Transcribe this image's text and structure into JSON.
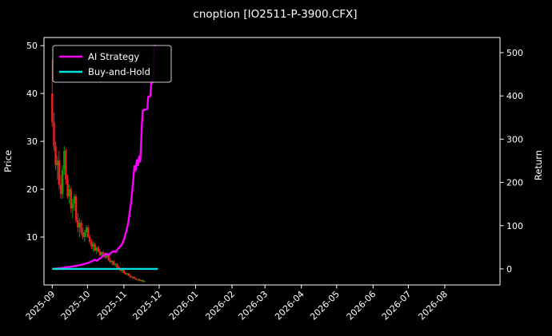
{
  "colors": {
    "background": "#000000",
    "text": "#ffffff",
    "spine": "#ffffff",
    "up_candle": "#00a000",
    "down_candle": "#f21f1f",
    "ai_strategy": "#ff00ff",
    "buy_and_hold": "#00e0e0",
    "legend_edge": "#cccccc"
  },
  "chart_data": {
    "type": "candlestick+line",
    "title": "cnoption [IO2511-P-3900.CFX]",
    "ylabel_left": "Price",
    "ylabel_right": "Return",
    "legend_position": "upper left",
    "grid": false,
    "x_domain_days": [
      2,
      390
    ],
    "price_ylim": [
      0,
      51.7
    ],
    "price_ticks": [
      10,
      20,
      30,
      40,
      50
    ],
    "return_ylim": [
      -37,
      535
    ],
    "return_ticks": [
      0,
      100,
      200,
      300,
      400,
      500
    ],
    "x_ticks": [
      {
        "label": "2025-09",
        "day": 9
      },
      {
        "label": "2025-10",
        "day": 39
      },
      {
        "label": "2025-11",
        "day": 70
      },
      {
        "label": "2025-12",
        "day": 100
      },
      {
        "label": "2026-01",
        "day": 131
      },
      {
        "label": "2026-02",
        "day": 162
      },
      {
        "label": "2026-03",
        "day": 190
      },
      {
        "label": "2026-04",
        "day": 221
      },
      {
        "label": "2026-05",
        "day": 251
      },
      {
        "label": "2026-06",
        "day": 282
      },
      {
        "label": "2026-07",
        "day": 312
      },
      {
        "label": "2026-08",
        "day": 343
      }
    ],
    "candles": {
      "days": [
        9,
        10.5,
        11.9,
        13.4,
        14.8,
        16.3,
        17.7,
        19.2,
        20.6,
        22.1,
        23.5,
        25,
        26.4,
        27.9,
        29.3,
        30.8,
        32.2,
        33.7,
        35.1,
        36.6,
        38,
        39.5,
        40.9,
        42.4,
        43.8,
        45.3,
        46.7,
        48.2,
        49.6,
        51.1,
        52.5,
        54,
        55.4,
        56.9,
        58.3,
        59.8,
        61.2,
        62.7,
        64.1,
        65.6,
        67,
        68.5,
        69.9,
        71.4,
        72.8,
        74.3,
        75.7,
        77.2,
        78.6,
        80.1,
        81.5,
        83,
        84.4,
        85.9,
        87.3
      ],
      "open": [
        40,
        34,
        29,
        25,
        26,
        21,
        19,
        24,
        28,
        22,
        18.5,
        20,
        16,
        17,
        18.5,
        13.5,
        12,
        13,
        11,
        10,
        11,
        12,
        10,
        9,
        8,
        8.5,
        7.2,
        7.8,
        7,
        6.2,
        6.8,
        6.5,
        5.8,
        6.2,
        5.2,
        4.8,
        5,
        4.2,
        4.4,
        3.7,
        3.4,
        3,
        3.1,
        2.5,
        2.2,
        2.4,
        1.9,
        1.6,
        1.7,
        1.3,
        1.1,
        1.2,
        0.9,
        1,
        0.7
      ],
      "high": [
        47,
        36,
        30,
        27,
        28,
        23,
        25,
        29,
        28.5,
        23,
        21,
        20.5,
        18,
        19,
        19,
        15,
        14,
        13.5,
        12,
        11.5,
        12.5,
        12.5,
        10.5,
        9.5,
        9,
        8.8,
        8,
        8.2,
        7.5,
        7,
        7.2,
        6.8,
        6.5,
        6.4,
        5.6,
        5.2,
        5.1,
        4.6,
        4.5,
        4,
        3.6,
        3.3,
        3.2,
        2.8,
        2.5,
        2.5,
        2.1,
        1.8,
        1.8,
        1.5,
        1.3,
        1.3,
        1.1,
        1.1,
        0.9
      ],
      "low": [
        33,
        28,
        24,
        22,
        20,
        18,
        18,
        23,
        21,
        18,
        17,
        15,
        14,
        15.5,
        13,
        11,
        10,
        10.5,
        9.5,
        9,
        10,
        9.8,
        8.5,
        7.5,
        7,
        7,
        6.5,
        6.8,
        6,
        5.8,
        6.2,
        5.5,
        5.5,
        5,
        4.5,
        4.2,
        4,
        3.8,
        3.5,
        3.2,
        2.8,
        2.6,
        2.4,
        2.1,
        1.9,
        1.8,
        1.5,
        1.3,
        1.2,
        1,
        0.9,
        0.8,
        0.7,
        0.6,
        0.5
      ],
      "close": [
        34,
        29,
        25,
        26,
        21,
        19,
        24,
        28,
        22,
        18.5,
        20,
        16,
        17,
        18.5,
        13.5,
        12,
        13,
        11,
        10,
        11,
        12,
        10,
        9,
        8,
        8.5,
        7.2,
        7.8,
        7,
        6.2,
        6.8,
        6.5,
        5.8,
        6.2,
        5.2,
        4.8,
        5,
        4.2,
        4.4,
        3.7,
        3.4,
        3,
        3.1,
        2.5,
        2.2,
        2.4,
        1.9,
        1.6,
        1.7,
        1.3,
        1.1,
        1.2,
        0.9,
        1,
        0.7,
        0.8
      ]
    },
    "series": [
      {
        "name": "AI Strategy",
        "slug": "ai-strategy",
        "color_key": "ai_strategy",
        "axis": "return",
        "x_days": [
          9,
          13,
          17,
          21,
          25,
          29,
          33,
          36,
          39.5,
          42,
          45,
          47,
          49,
          51,
          53,
          55,
          57,
          59,
          61,
          63,
          65,
          67,
          68.5,
          70,
          71.5,
          73,
          74,
          75,
          76,
          77,
          78,
          79,
          80,
          81,
          82,
          83,
          83.8,
          84.5,
          85.2,
          86,
          88,
          90,
          90.6,
          92.5,
          93.2,
          94.5,
          95,
          95.6,
          97
        ],
        "values": [
          0,
          1,
          2,
          4,
          5,
          7,
          9,
          11,
          14,
          17,
          21,
          19,
          23,
          27,
          32,
          35,
          32,
          37,
          41,
          39,
          47,
          52,
          58,
          68,
          82,
          98,
          112,
          132,
          152,
          178,
          208,
          238,
          228,
          252,
          240,
          260,
          248,
          282,
          328,
          366,
          368,
          370,
          398,
          400,
          428,
          432,
          438,
          512,
          518
        ]
      },
      {
        "name": "Buy-and-Hold",
        "slug": "buy-and-hold",
        "color_key": "buy_and_hold",
        "axis": "return",
        "x_days": [
          9,
          99
        ],
        "values": [
          0,
          0
        ]
      }
    ]
  }
}
